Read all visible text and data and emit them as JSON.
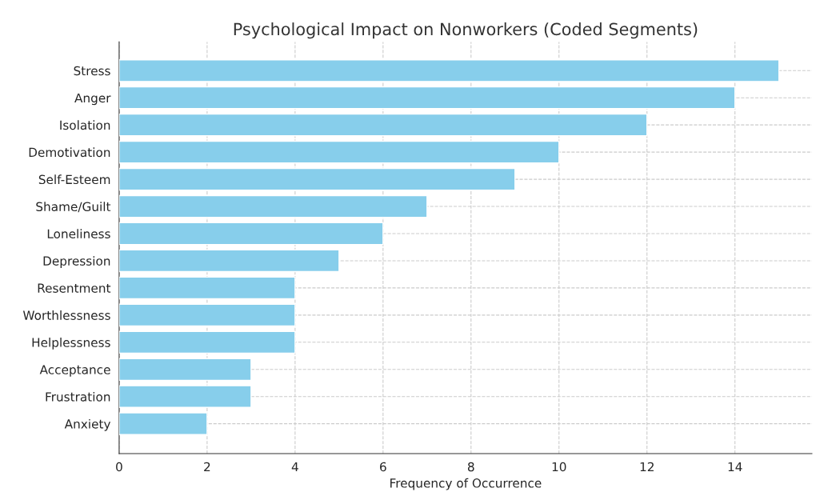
{
  "chart_data": {
    "type": "bar",
    "orientation": "horizontal",
    "title": "Psychological Impact on Nonworkers (Coded Segments)",
    "xlabel": "Frequency of Occurrence",
    "categories": [
      "Stress",
      "Anger",
      "Isolation",
      "Demotivation",
      "Self-Esteem",
      "Shame/Guilt",
      "Loneliness",
      "Depression",
      "Resentment",
      "Worthlessness",
      "Helplessness",
      "Acceptance",
      "Frustration",
      "Anxiety"
    ],
    "values": [
      15,
      14,
      12,
      10,
      9,
      7,
      6,
      5,
      4,
      4,
      4,
      3,
      3,
      2
    ],
    "color": "#87ceeb",
    "xlim": [
      0,
      15.75
    ],
    "xticks": [
      0,
      2,
      4,
      6,
      8,
      10,
      12,
      14
    ],
    "grid": true,
    "line_style": "dashed"
  }
}
